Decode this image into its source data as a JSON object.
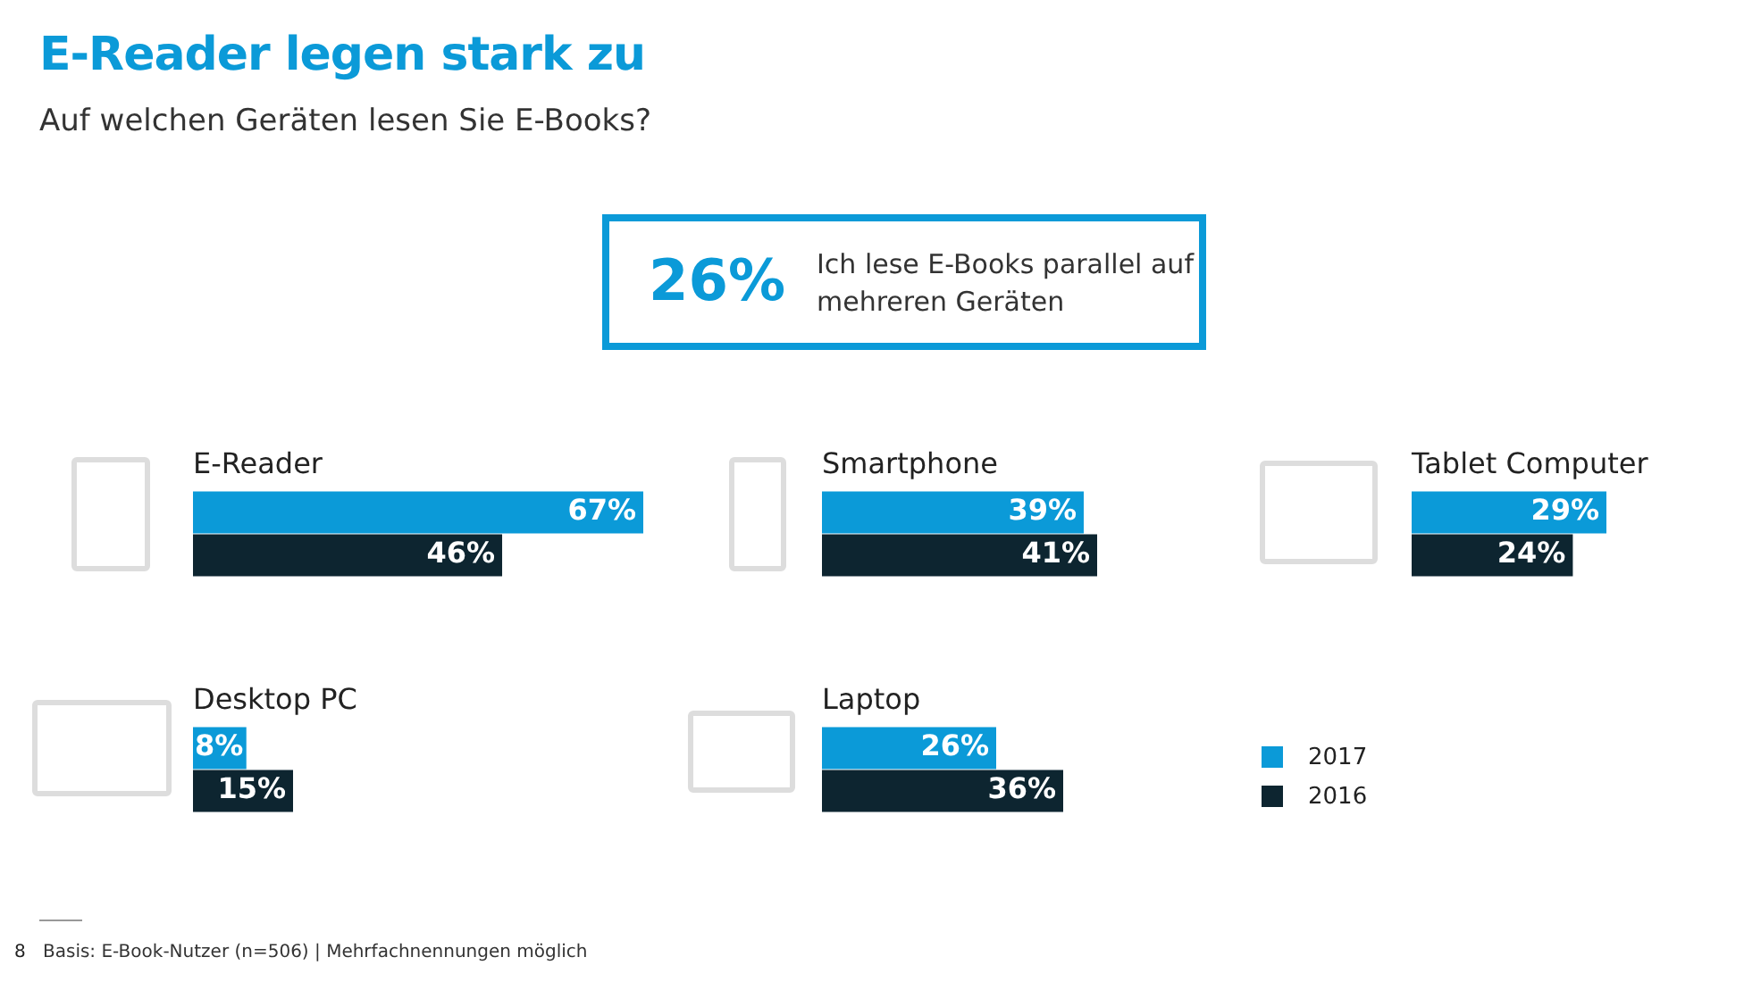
{
  "chart_data": [
    {
      "type": "other",
      "title": "E-Reader legen stark zu",
      "subtitle": "Auf welchen Geräten lesen Sie E-Books?",
      "annotations": [
        "26%",
        "Ich lese E-Books parallel auf mehreren Geräten",
        "8",
        "Basis: E-Book-Nutzer (n=506) | Mehrfachnennungen möglich"
      ]
    },
    {
      "type": "bar",
      "orientation": "horizontal",
      "title": "E-Reader",
      "categories": [
        null
      ],
      "tick_labels": false,
      "series": [
        {
          "color": "#0b9ad8",
          "values": [
            67
          ],
          "value_labels": [
            "67%"
          ]
        },
        {
          "color": "#0d2530",
          "values": [
            46
          ],
          "value_labels": [
            "46%"
          ]
        }
      ]
    },
    {
      "type": "bar",
      "orientation": "horizontal",
      "title": "Smartphone",
      "categories": [
        null
      ],
      "tick_labels": false,
      "series": [
        {
          "color": "#0b9ad8",
          "values": [
            39
          ],
          "value_labels": [
            "39%"
          ]
        },
        {
          "color": "#0d2530",
          "values": [
            41
          ],
          "value_labels": [
            "41%"
          ]
        }
      ]
    },
    {
      "type": "bar",
      "orientation": "horizontal",
      "title": "Tablet Computer",
      "categories": [
        null
      ],
      "tick_labels": false,
      "series": [
        {
          "color": "#0b9ad8",
          "values": [
            29
          ],
          "value_labels": [
            "29%"
          ]
        },
        {
          "color": "#0d2530",
          "values": [
            24
          ],
          "value_labels": [
            "24%"
          ]
        }
      ]
    },
    {
      "type": "bar",
      "orientation": "horizontal",
      "title": "Desktop PC",
      "categories": [
        null
      ],
      "tick_labels": false,
      "series": [
        {
          "color": "#0b9ad8",
          "values": [
            8
          ],
          "value_labels": [
            "8%"
          ]
        },
        {
          "color": "#0d2530",
          "values": [
            15
          ],
          "value_labels": [
            "15%"
          ]
        }
      ]
    },
    {
      "type": "bar",
      "orientation": "horizontal",
      "title": "Laptop",
      "categories": [
        null
      ],
      "tick_labels": false,
      "legend": "right",
      "series": [
        {
          "name": "2017",
          "color": "#0b9ad8",
          "values": [
            26
          ],
          "value_labels": [
            "26%"
          ]
        },
        {
          "name": "2016",
          "color": "#0d2530",
          "values": [
            36
          ],
          "value_labels": [
            "36%"
          ]
        }
      ]
    }
  ]
}
